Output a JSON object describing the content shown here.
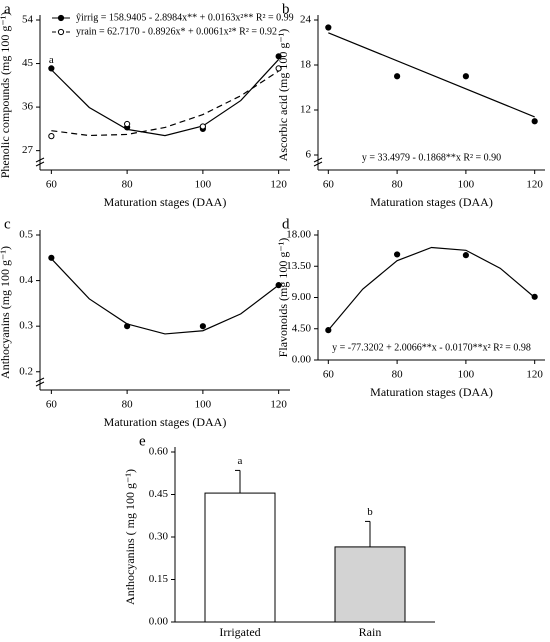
{
  "chart_data": [
    {
      "type": "scatter",
      "panel": "a",
      "xlabel": "Maturation stages (DAA)",
      "ylabel": "Phenolic compounds (mg 100 g⁻¹)",
      "xlim": [
        57,
        123
      ],
      "xticks": [
        60,
        80,
        100,
        120
      ],
      "ylim": [
        23,
        54
      ],
      "yticks": [
        27,
        36,
        45,
        54
      ],
      "axis_break": true,
      "series": [
        {
          "equation": "ŷirrig = 158.9405 - 2.8984x** + 0.0163x²**  R² = 0.99",
          "marker": "filled",
          "color": "#000000",
          "x": [
            60,
            80,
            100,
            120
          ],
          "values": [
            44,
            31.8,
            31.5,
            46.5
          ],
          "point_labels": [
            "a",
            null,
            null,
            null
          ],
          "fit": {
            "dash": false,
            "x": [
              60,
              70,
              80,
              90,
              100,
              110,
              120
            ],
            "values": [
              43.72,
              35.92,
              31.39,
              30.11,
              32.1,
              37.35,
              45.85
            ]
          }
        },
        {
          "equation": "yrain = 62.7170 - 0.8926x* + 0.0061x²*  R² = 0.92",
          "marker": "open",
          "color": "#000000",
          "x": [
            60,
            80,
            100,
            120
          ],
          "values": [
            30,
            32.5,
            32,
            44
          ],
          "fit": {
            "dash": true,
            "x": [
              60,
              70,
              80,
              90,
              100,
              110,
              120
            ],
            "values": [
              31.12,
              30.13,
              30.35,
              31.79,
              34.46,
              38.34,
              43.45
            ]
          }
        }
      ]
    },
    {
      "type": "scatter",
      "panel": "b",
      "xlabel": "Maturation stages (DAA)",
      "ylabel": "Ascorbic acid (mg 100 g⁻¹)",
      "xlim": [
        57,
        123
      ],
      "xticks": [
        60,
        80,
        100,
        120
      ],
      "ylim": [
        4,
        24
      ],
      "yticks": [
        6,
        12,
        18,
        24
      ],
      "axis_break": true,
      "equation": "y = 33.4979 - 0.1868**x R² = 0.90",
      "series": [
        {
          "marker": "filled",
          "color": "#000000",
          "x": [
            60,
            80,
            100,
            120
          ],
          "values": [
            23,
            16.5,
            16.5,
            10.5
          ],
          "fit": {
            "dash": false,
            "x": [
              60,
              120
            ],
            "values": [
              22.29,
              11.08
            ]
          }
        }
      ]
    },
    {
      "type": "scatter",
      "panel": "c",
      "xlabel": "Maturation stages (DAA)",
      "ylabel": "Anthocyanins (mg 100 g⁻¹)",
      "xlim": [
        57,
        123
      ],
      "xticks": [
        60,
        80,
        100,
        120
      ],
      "ylim": [
        0.16,
        0.5
      ],
      "yticks": [
        0.2,
        0.3,
        0.4,
        0.5
      ],
      "axis_break": true,
      "series": [
        {
          "marker": "filled",
          "color": "#000000",
          "x": [
            60,
            80,
            100,
            120
          ],
          "values": [
            0.45,
            0.3,
            0.3,
            0.39
          ],
          "fit": {
            "dash": false,
            "x": [
              60,
              70,
              80,
              90,
              100,
              110,
              120
            ],
            "values": [
              0.448,
              0.36,
              0.305,
              0.283,
              0.29,
              0.327,
              0.39
            ]
          }
        }
      ]
    },
    {
      "type": "scatter",
      "panel": "d",
      "xlabel": "Maturation stages (DAA)",
      "ylabel": "Flavonoids (mg 100 g⁻¹)",
      "xlim": [
        57,
        123
      ],
      "xticks": [
        60,
        80,
        100,
        120
      ],
      "ylim": [
        0,
        18
      ],
      "yticks": [
        {
          "value": 0,
          "label": "0.00"
        },
        {
          "value": 4.5,
          "label": "4.50"
        },
        {
          "value": 9,
          "label": "9.00"
        },
        {
          "value": 13.5,
          "label": "13.50"
        },
        {
          "value": 18,
          "label": "18.00"
        }
      ],
      "equation": "y = -77.3202 + 2.0066**x - 0.0170**x²  R² = 0.98",
      "series": [
        {
          "marker": "filled",
          "color": "#000000",
          "x": [
            60,
            80,
            100,
            120
          ],
          "values": [
            4.3,
            15.2,
            15.1,
            9.1
          ],
          "fit": {
            "dash": false,
            "x": [
              60,
              70,
              80,
              90,
              100,
              110,
              120
            ],
            "values": [
              4.3,
              10.2,
              14.3,
              16.2,
              15.8,
              13.2,
              9.0
            ]
          }
        }
      ]
    },
    {
      "type": "bar",
      "panel": "e",
      "ylabel": "Anthocyanins  ( mg 100 g⁻¹)",
      "ylim": [
        0,
        0.6
      ],
      "yticks": [
        {
          "value": 0,
          "label": "0.00"
        },
        0.15,
        {
          "value": 0.3,
          "label": "0.30"
        },
        0.45,
        {
          "value": 0.6,
          "label": "0.60"
        }
      ],
      "categories": [
        "Irrigated",
        "Rain"
      ],
      "values": [
        0.455,
        0.265
      ],
      "errors": [
        0.08,
        0.09
      ],
      "letters": [
        "a",
        "b"
      ],
      "colors": [
        "#ffffff",
        "#d3d3d3"
      ]
    }
  ]
}
